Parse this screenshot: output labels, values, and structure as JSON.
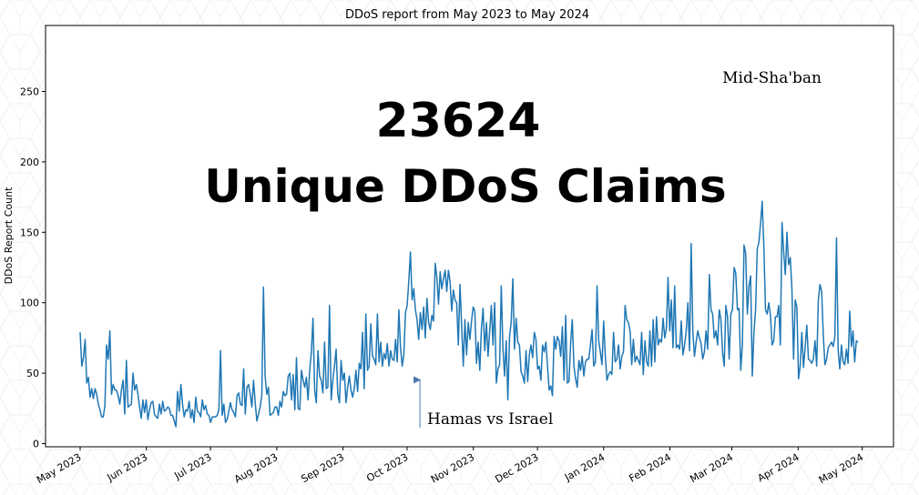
{
  "chart_data": {
    "type": "line",
    "title": "DDoS report from May 2023 to May 2024",
    "xlabel": "",
    "ylabel": "DDoS Report Count",
    "ylim": [
      0,
      290
    ],
    "yticks": [
      0,
      50,
      100,
      150,
      200,
      250
    ],
    "x_tick_labels": [
      "May 2023",
      "Jun 2023",
      "Jul 2023",
      "Aug 2023",
      "Sep 2023",
      "Oct 2023",
      "Nov 2023",
      "Dec 2023",
      "Jan 2024",
      "Feb 2024",
      "Mar 2024",
      "Apr 2024",
      "May 2024"
    ],
    "x_start": "2023-05-01",
    "x_end": "2024-04-29",
    "big_text": [
      "23624",
      "Unique DDoS Claims"
    ],
    "annotations": [
      {
        "text": "Hamas vs Israel",
        "date": "2023-10-07",
        "y": 53,
        "arrow": true
      },
      {
        "text": "Mid-Sha'ban",
        "date": "2024-02-23",
        "y": 255,
        "arrow": false
      }
    ],
    "series": [
      {
        "color": "#1f77b4",
        "values": [
          79,
          55,
          61,
          74,
          43,
          47,
          33,
          39,
          32,
          39,
          35,
          28,
          24,
          19,
          19,
          27,
          70,
          60,
          80,
          35,
          42,
          38,
          38,
          34,
          28,
          38,
          45,
          21,
          59,
          26,
          27,
          28,
          50,
          38,
          42,
          35,
          26,
          18,
          31,
          22,
          31,
          17,
          24,
          29,
          30,
          21,
          19,
          18,
          28,
          21,
          30,
          23,
          24,
          26,
          25,
          20,
          20,
          16,
          12,
          37,
          23,
          42,
          28,
          19,
          24,
          23,
          30,
          18,
          24,
          15,
          33,
          23,
          22,
          19,
          31,
          24,
          27,
          21,
          20,
          15,
          19,
          19,
          19,
          20,
          24,
          66,
          20,
          28,
          15,
          17,
          23,
          29,
          24,
          22,
          19,
          34,
          36,
          28,
          27,
          53,
          21,
          40,
          42,
          35,
          26,
          45,
          29,
          16,
          21,
          26,
          34,
          111,
          48,
          35,
          40,
          20,
          21,
          22,
          26,
          26,
          20,
          30,
          26,
          37,
          34,
          35,
          48,
          50,
          31,
          49,
          24,
          61,
          25,
          24,
          52,
          45,
          40,
          47,
          31,
          52,
          65,
          89,
          38,
          29,
          66,
          48,
          45,
          36,
          72,
          39,
          40,
          98,
          31,
          45,
          55,
          67,
          35,
          29,
          59,
          45,
          50,
          29,
          40,
          48,
          38,
          33,
          39,
          52,
          37,
          57,
          53,
          79,
          39,
          92,
          52,
          55,
          85,
          62,
          60,
          56,
          92,
          58,
          72,
          55,
          64,
          60,
          71,
          55,
          66,
          60,
          59,
          74,
          58,
          95,
          68,
          55,
          63,
          93,
          98,
          115,
          136,
          102,
          110,
          95,
          88,
          74,
          93,
          81,
          97,
          75,
          103,
          86,
          81,
          91,
          87,
          128,
          118,
          99,
          122,
          110,
          117,
          123,
          108,
          123,
          115,
          94,
          109,
          102,
          100,
          70,
          113,
          84,
          55,
          88,
          63,
          86,
          74,
          87,
          97,
          94,
          57,
          72,
          52,
          82,
          96,
          66,
          86,
          62,
          80,
          98,
          70,
          100,
          43,
          53,
          56,
          112,
          68,
          48,
          73,
          31,
          76,
          86,
          117,
          67,
          89,
          72,
          70,
          51,
          48,
          43,
          66,
          44,
          63,
          70,
          61,
          79,
          74,
          53,
          55,
          45,
          70,
          65,
          72,
          55,
          38,
          41,
          34,
          76,
          67,
          76,
          73,
          62,
          83,
          45,
          91,
          43,
          44,
          71,
          88,
          55,
          46,
          40,
          59,
          52,
          62,
          48,
          58,
          60,
          60,
          70,
          81,
          55,
          58,
          112,
          73,
          65,
          56,
          87,
          62,
          45,
          49,
          51,
          49,
          79,
          58,
          60,
          70,
          53,
          62,
          65,
          98,
          88,
          86,
          80,
          56,
          74,
          58,
          62,
          59,
          56,
          79,
          49,
          73,
          58,
          55,
          80,
          55,
          88,
          58,
          90,
          70,
          74,
          72,
          89,
          75,
          82,
          118,
          80,
          102,
          68,
          112,
          68,
          70,
          67,
          87,
          63,
          70,
          80,
          100,
          66,
          142,
          80,
          62,
          72,
          80,
          75,
          71,
          60,
          65,
          80,
          67,
          120,
          95,
          92,
          75,
          80,
          70,
          95,
          88,
          65,
          55,
          98,
          90,
          60,
          92,
          95,
          125,
          121,
          95,
          96,
          52,
          70,
          141,
          135,
          92,
          112,
          119,
          48,
          79,
          95,
          138,
          143,
          156,
          172,
          140,
          95,
          92,
          100,
          91,
          70,
          73,
          90,
          90,
          98,
          70,
          157,
          136,
          120,
          150,
          127,
          132,
          110,
          60,
          102,
          97,
          46,
          55,
          79,
          54,
          68,
          84,
          60,
          59,
          57,
          60,
          73,
          55,
          102,
          113,
          108,
          77,
          56,
          60,
          68,
          70,
          72,
          69,
          76,
          146,
          66,
          53,
          70,
          58,
          56,
          67,
          57,
          94,
          69,
          80,
          58,
          73,
          72
        ]
      }
    ]
  }
}
